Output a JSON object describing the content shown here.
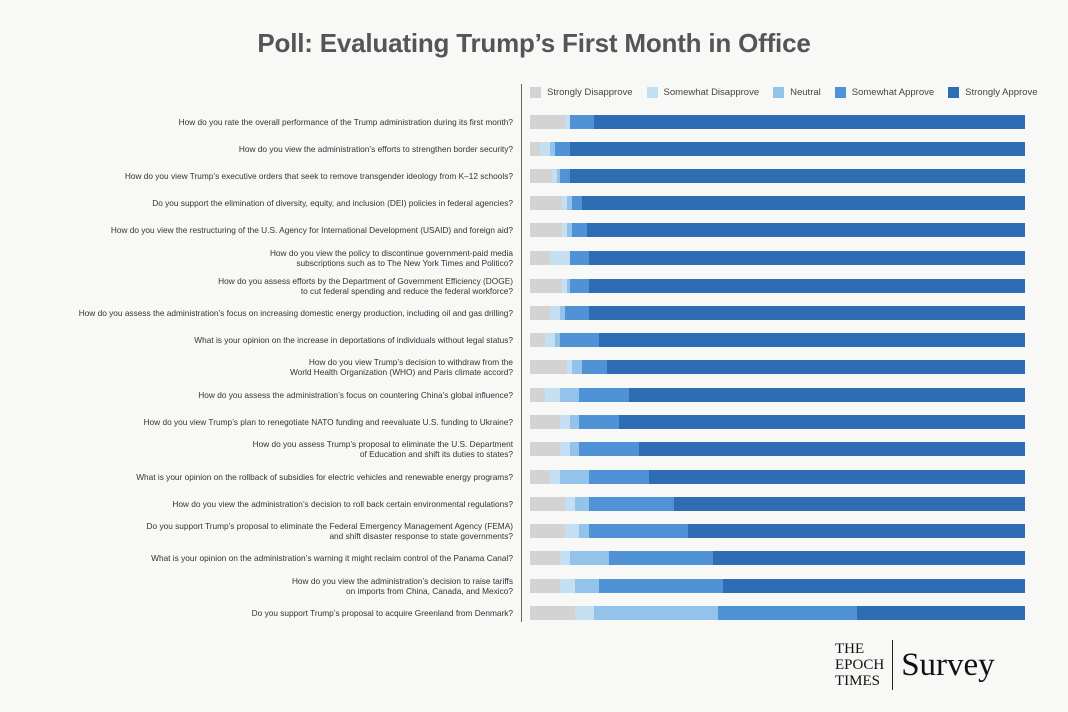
{
  "title": "Poll: Evaluating Trump’s First Month in Office",
  "logo": {
    "line1": "THE",
    "line2": "EPOCH",
    "line3": "TIMES",
    "right": "Survey"
  },
  "colors": {
    "strongly_disapprove": "#d3d3d3",
    "somewhat_disapprove": "#c4dff2",
    "neutral": "#93c2ea",
    "somewhat_approve": "#4f92d6",
    "strongly_approve": "#2e6db4"
  },
  "chart_data": {
    "type": "bar",
    "orientation": "horizontal-stacked",
    "title": "Poll: Evaluating Trump’s First Month in Office",
    "xlim": [
      0,
      100
    ],
    "legend_position": "top",
    "series_names": [
      "Strongly Disapprove",
      "Somewhat Disapprove",
      "Neutral",
      "Somewhat Approve",
      "Strongly Approve"
    ],
    "categories": [
      [
        "How do you rate the overall performance of the Trump administration during its first month?"
      ],
      [
        "How do you view the administration’s efforts to strengthen border security?"
      ],
      [
        "How do you view Trump’s executive orders that seek to remove transgender ideology from K–12 schools?"
      ],
      [
        "Do you support the elimination of diversity, equity, and inclusion (DEI) policies in federal agencies?"
      ],
      [
        "How do you view the restructuring of the U.S. Agency for International Development (USAID) and foreign aid?"
      ],
      [
        "How do you view the policy to discontinue government-paid media",
        "subscriptions such as to The New York Times and Politico?"
      ],
      [
        "How do you assess efforts by the Department of Government Efficiency (DOGE)",
        "to cut federal spending and reduce the federal workforce?"
      ],
      [
        "How do you assess the administration’s focus on increasing domestic energy production, including oil and gas drilling?"
      ],
      [
        "What is your opinion on the increase in deportations of individuals without legal status?"
      ],
      [
        "How do you view Trump’s decision to withdraw from the",
        "World Health Organization (WHO) and Paris climate accord?"
      ],
      [
        "How do you assess the administration’s focus on countering China’s global influence?"
      ],
      [
        "How do you view Trump’s plan to renegotiate NATO funding and reevaluate U.S. funding to Ukraine?"
      ],
      [
        "How do you assess Trump’s proposal to eliminate the U.S. Department",
        "of Education and shift its duties to states?"
      ],
      [
        "What is your opinion on the rollback of subsidies for electric vehicles and renewable energy programs?"
      ],
      [
        "How do you view the administration’s decision to roll back certain environmental regulations?"
      ],
      [
        "Do you support Trump’s proposal to eliminate the Federal Emergency Management Agency (FEMA)",
        "and shift disaster response to state governments?"
      ],
      [
        "What is your opinion on the administration’s warning it might reclaim control of the Panama Canal?"
      ],
      [
        "How do you view the administration’s decision to raise tariffs",
        "on imports from China, Canada, and Mexico?"
      ],
      [
        "Do you support Trump’s proposal to acquire Greenland from Denmark?"
      ]
    ],
    "series": [
      {
        "name": "Strongly Disapprove",
        "values": [
          7,
          2,
          4.5,
          6.5,
          6.5,
          4,
          6.5,
          4,
          3,
          7.5,
          3,
          6,
          6,
          4,
          7,
          7,
          6,
          6,
          9
        ]
      },
      {
        "name": "Somewhat Disapprove",
        "values": [
          1,
          2,
          1,
          1,
          1,
          4,
          1,
          2,
          2,
          1,
          3,
          2,
          2,
          2,
          2,
          3,
          2,
          3,
          4
        ]
      },
      {
        "name": "Neutral",
        "values": [
          0,
          1,
          0.5,
          1,
          1,
          0,
          0.5,
          1,
          1,
          2,
          4,
          2,
          2,
          6,
          3,
          2,
          8,
          5,
          25
        ]
      },
      {
        "name": "Somewhat Approve",
        "values": [
          5,
          3,
          2,
          2,
          3,
          4,
          4,
          5,
          8,
          5,
          10,
          8,
          12,
          12,
          17,
          20,
          21,
          25,
          28
        ]
      },
      {
        "name": "Strongly Approve",
        "values": [
          87,
          92,
          92,
          89.5,
          88.5,
          88,
          88,
          88,
          86,
          84.5,
          80,
          82,
          78,
          76,
          71,
          68,
          63,
          61,
          34
        ]
      }
    ]
  }
}
